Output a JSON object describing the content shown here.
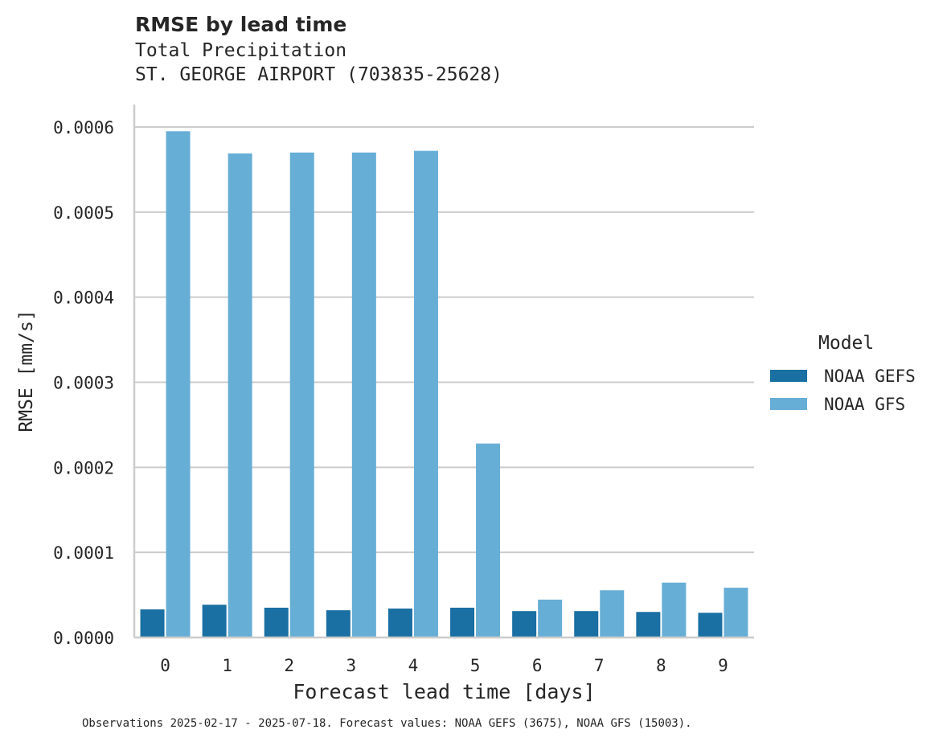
{
  "chart_data": {
    "type": "bar",
    "title": "RMSE by lead time",
    "subtitle_lines": [
      "Total Precipitation",
      "ST. GEORGE AIRPORT (703835-25628)"
    ],
    "xlabel": "Forecast lead time [days]",
    "ylabel": "RMSE [mm/s]",
    "categories": [
      "0",
      "1",
      "2",
      "3",
      "4",
      "5",
      "6",
      "7",
      "8",
      "9"
    ],
    "series": [
      {
        "name": "NOAA GEFS",
        "color": "#1a6fa3",
        "values": [
          3.3e-05,
          3.85e-05,
          3.5e-05,
          3.2e-05,
          3.4e-05,
          3.5e-05,
          3.1e-05,
          3.1e-05,
          3e-05,
          2.9e-05
        ]
      },
      {
        "name": "NOAA GFS",
        "color": "#67aed6",
        "values": [
          0.000595,
          0.000569,
          0.00057,
          0.00057,
          0.000572,
          0.000228,
          4.45e-05,
          5.55e-05,
          6.45e-05,
          5.85e-05
        ]
      }
    ],
    "ylim": [
      0,
      0.0006
    ],
    "yticks": [
      "0.0000",
      "0.0001",
      "0.0002",
      "0.0003",
      "0.0004",
      "0.0005",
      "0.0006"
    ],
    "grid": "horizontal",
    "legend": {
      "title": "Model",
      "placement": "right"
    }
  },
  "footnote": "Observations 2025-02-17 - 2025-07-18. Forecast values: NOAA GEFS (3675), NOAA GFS (15003)."
}
